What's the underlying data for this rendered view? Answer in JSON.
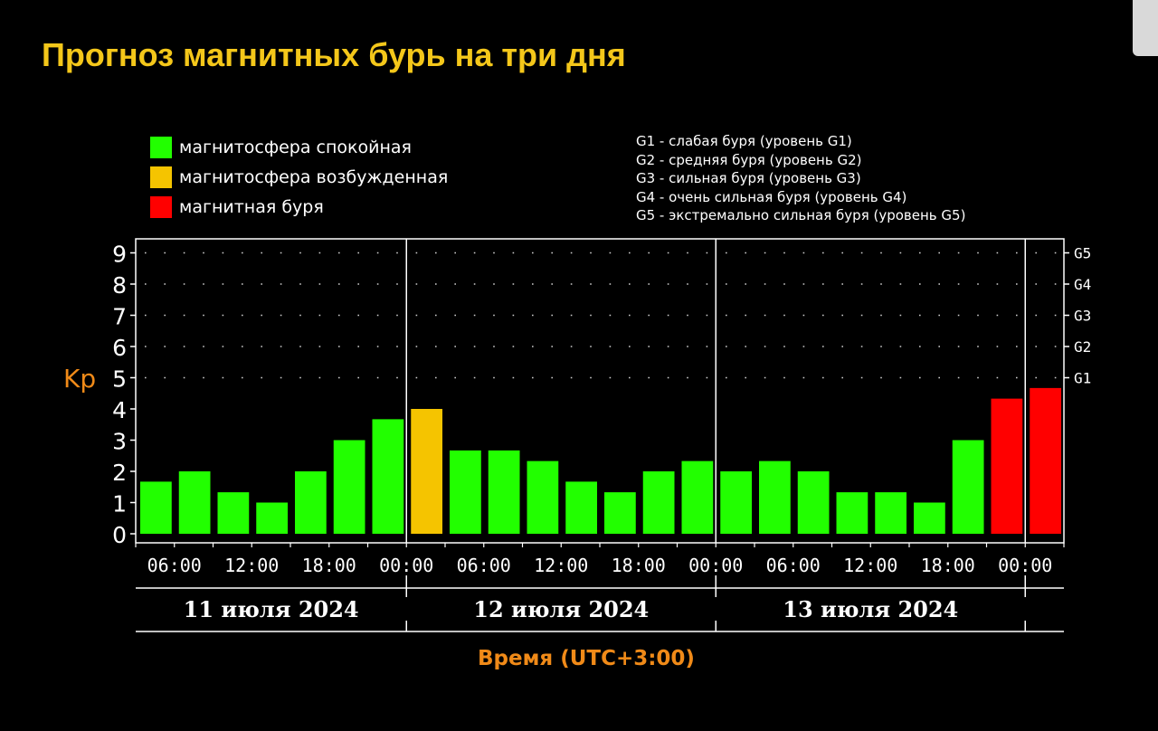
{
  "title": "Прогноз магнитных бурь на три дня",
  "legend": [
    {
      "label": "магнитосфера спокойная",
      "color": "#22ff00"
    },
    {
      "label": "магнитосфера возбужденная",
      "color": "#f5c400"
    },
    {
      "label": "магнитная буря",
      "color": "#ff0000"
    }
  ],
  "storm_levels": [
    "G1 - слабая буря (уровень G1)",
    "G2 - средняя буря (уровень G2)",
    "G3 - сильная буря (уровень G3)",
    "G4 - очень сильная буря (уровень G4)",
    "G5 - экстремально сильная буря (уровень G5)"
  ],
  "chart_data": {
    "type": "bar",
    "ylabel": "Kp",
    "xlabel": "Время (UTC+3:00)",
    "ylim": [
      0,
      9
    ],
    "yticks": [
      "0",
      "1",
      "2",
      "3",
      "4",
      "5",
      "6",
      "7",
      "8",
      "9"
    ],
    "g_levels": [
      {
        "label": "G1",
        "kp": 5
      },
      {
        "label": "G2",
        "kp": 6
      },
      {
        "label": "G3",
        "kp": 7
      },
      {
        "label": "G4",
        "kp": 8
      },
      {
        "label": "G5",
        "kp": 9
      }
    ],
    "time_ticks": [
      "06:00",
      "12:00",
      "18:00",
      "00:00",
      "06:00",
      "12:00",
      "18:00",
      "00:00",
      "06:00",
      "12:00",
      "18:00",
      "00:00"
    ],
    "days": [
      "11 июля 2024",
      "12 июля 2024",
      "13 июля 2024"
    ],
    "values": [
      1.67,
      2.0,
      1.33,
      1.0,
      2.0,
      3.0,
      3.67,
      4.0,
      2.67,
      2.67,
      2.33,
      1.67,
      1.33,
      2.0,
      2.33,
      2.0,
      2.33,
      2.0,
      1.33,
      1.33,
      1.0,
      3.0,
      4.33,
      4.67
    ],
    "levels": [
      "quiet",
      "quiet",
      "quiet",
      "quiet",
      "quiet",
      "quiet",
      "quiet",
      "active",
      "quiet",
      "quiet",
      "quiet",
      "quiet",
      "quiet",
      "quiet",
      "quiet",
      "quiet",
      "quiet",
      "quiet",
      "quiet",
      "quiet",
      "quiet",
      "quiet",
      "storm",
      "storm"
    ],
    "colors": {
      "quiet": "#22ff00",
      "active": "#f5c400",
      "storm": "#ff0000"
    },
    "grid": "dotted"
  }
}
